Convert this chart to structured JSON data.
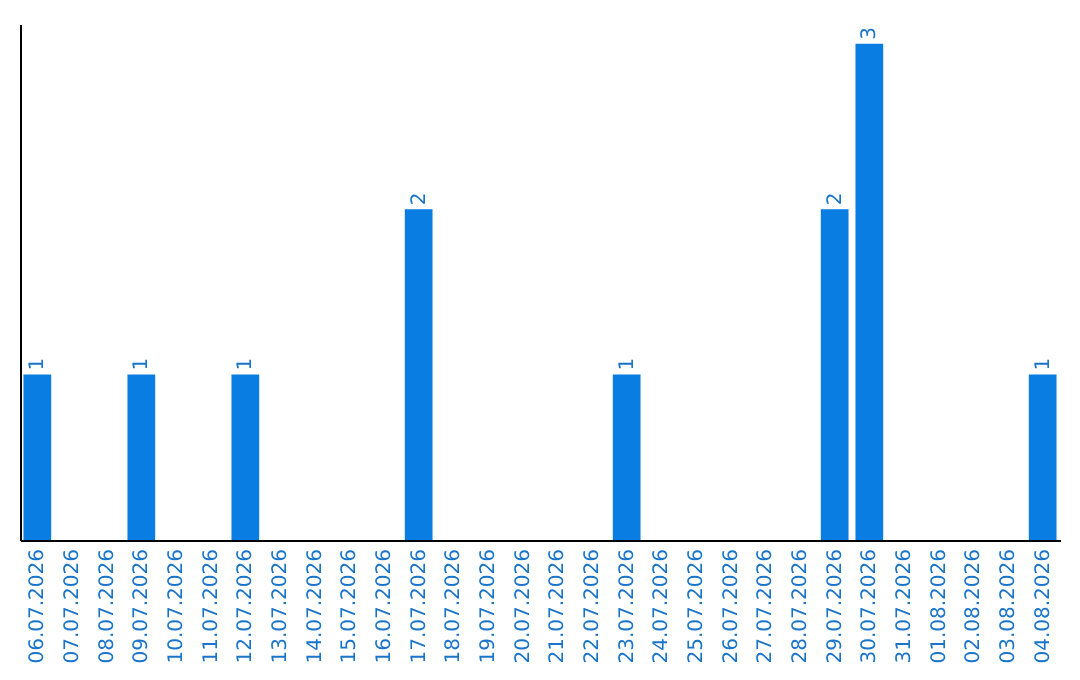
{
  "chart_data": {
    "type": "bar",
    "categories": [
      "06.07.2026",
      "07.07.2026",
      "08.07.2026",
      "09.07.2026",
      "10.07.2026",
      "11.07.2026",
      "12.07.2026",
      "13.07.2026",
      "14.07.2026",
      "15.07.2026",
      "16.07.2026",
      "17.07.2026",
      "18.07.2026",
      "19.07.2026",
      "20.07.2026",
      "21.07.2026",
      "22.07.2026",
      "23.07.2026",
      "24.07.2026",
      "25.07.2026",
      "26.07.2026",
      "27.07.2026",
      "28.07.2026",
      "29.07.2026",
      "30.07.2026",
      "31.07.2026",
      "01.08.2026",
      "02.08.2026",
      "03.08.2026",
      "04.08.2026"
    ],
    "values": [
      1,
      null,
      null,
      1,
      null,
      null,
      1,
      null,
      null,
      null,
      null,
      2,
      null,
      null,
      null,
      null,
      null,
      1,
      null,
      null,
      null,
      null,
      null,
      2,
      3,
      null,
      null,
      null,
      null,
      1
    ],
    "color": "#0a7de3",
    "data_labels": true
  }
}
